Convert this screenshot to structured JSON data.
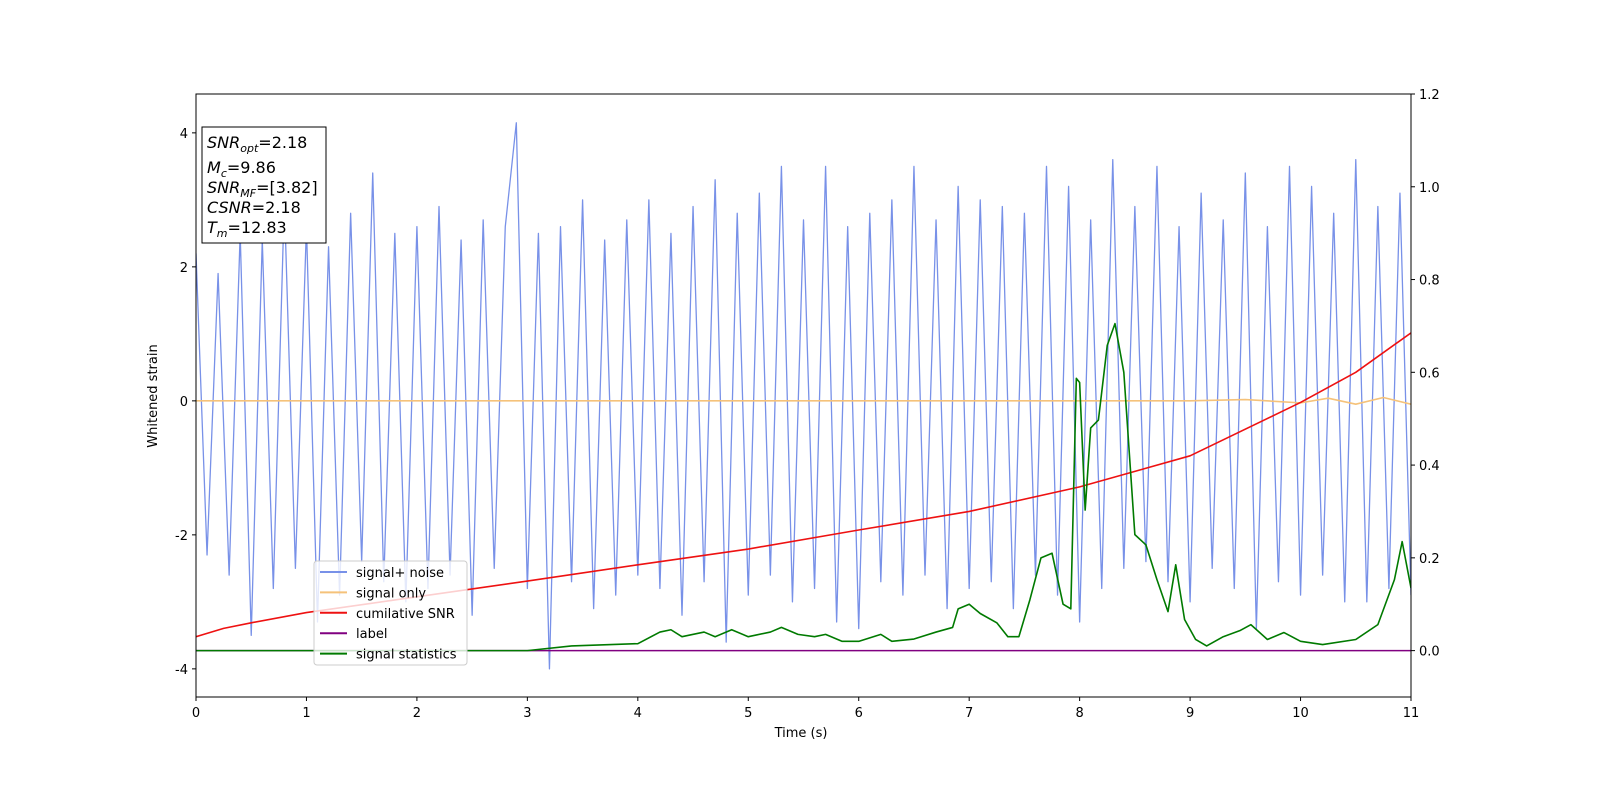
{
  "chart_data": {
    "type": "line",
    "xlabel": "Time (s)",
    "ylabel": "Whitened strain",
    "xlim": [
      0,
      11
    ],
    "xticks": [
      0,
      1,
      2,
      3,
      4,
      5,
      6,
      7,
      8,
      9,
      10,
      11
    ],
    "ylim": [
      -4.42,
      4.58
    ],
    "yticks": [
      -4,
      -2,
      0,
      2,
      4
    ],
    "y2lim": [
      -0.1,
      1.2
    ],
    "y2ticks": [
      {
        "value": 0,
        "label": "0.0"
      },
      0.2,
      0.4,
      0.6,
      0.8,
      {
        "value": 1,
        "label": "1.0"
      },
      1.2
    ],
    "legend_loc": "lower left",
    "annotation": [
      {
        "symbol": "SNR",
        "subscript": "opt",
        "text": "=2.18"
      },
      {
        "symbol": "M",
        "subscript": "c",
        "text": "=9.86"
      },
      {
        "symbol": "SNR",
        "subscript": "MF",
        "text": "=[3.82]"
      },
      {
        "symbol": "CSNR",
        "text": "=2.18"
      },
      {
        "symbol": "T",
        "subscript": "m",
        "text": "=12.83"
      }
    ],
    "series": [
      {
        "name": "signal+ noise",
        "color": "#7891e8",
        "x": [
          0,
          0.1,
          0.2,
          0.3,
          0.4,
          0.5,
          0.6,
          0.7,
          0.8,
          0.9,
          1,
          1.1,
          1.2,
          1.3,
          1.4,
          1.5,
          1.6,
          1.7,
          1.8,
          1.9,
          2,
          2.1,
          2.2,
          2.3,
          2.4,
          2.5,
          2.6,
          2.7,
          2.8,
          2.9,
          3,
          3.1,
          3.2,
          3.3,
          3.4,
          3.5,
          3.6,
          3.7,
          3.8,
          3.9,
          4,
          4.1,
          4.2,
          4.3,
          4.4,
          4.5,
          4.6,
          4.7,
          4.8,
          4.9,
          5,
          5.1,
          5.2,
          5.3,
          5.4,
          5.5,
          5.6,
          5.7,
          5.8,
          5.9,
          6,
          6.1,
          6.2,
          6.3,
          6.4,
          6.5,
          6.6,
          6.7,
          6.8,
          6.9,
          7,
          7.1,
          7.2,
          7.3,
          7.4,
          7.5,
          7.6,
          7.7,
          7.8,
          7.9,
          8,
          8.1,
          8.2,
          8.3,
          8.4,
          8.5,
          8.6,
          8.7,
          8.8,
          8.9,
          9,
          9.1,
          9.2,
          9.3,
          9.4,
          9.5,
          9.6,
          9.7,
          9.8,
          9.9,
          10,
          10.1,
          10.2,
          10.3,
          10.4,
          10.5,
          10.6,
          10.7,
          10.8,
          10.9,
          11
        ],
        "values": [
          2.2,
          -2.3,
          1.9,
          -2.6,
          2.5,
          -3.5,
          2.4,
          -2.8,
          3.0,
          -2.5,
          2.6,
          -3.3,
          2.3,
          -2.9,
          2.8,
          -2.4,
          3.4,
          -2.7,
          2.5,
          -3.0,
          2.6,
          -2.8,
          2.9,
          -2.6,
          2.4,
          -3.2,
          2.7,
          -2.5,
          2.6,
          4.15,
          -2.8,
          2.5,
          -4.0,
          2.6,
          -2.7,
          3.0,
          -3.1,
          2.4,
          -2.9,
          2.7,
          -2.6,
          3.0,
          -2.8,
          2.5,
          -3.2,
          2.9,
          -2.7,
          3.3,
          -3.6,
          2.8,
          -2.9,
          3.1,
          -2.6,
          3.5,
          -3.0,
          2.7,
          -2.8,
          3.5,
          -3.3,
          2.6,
          -3.4,
          2.8,
          -2.7,
          3.0,
          -2.9,
          3.5,
          -2.6,
          2.7,
          -3.1,
          3.2,
          -2.8,
          3.0,
          -2.7,
          2.9,
          -3.1,
          2.8,
          -2.6,
          3.5,
          -2.9,
          3.2,
          -3.3,
          2.7,
          -2.8,
          3.6,
          -2.5,
          2.9,
          -2.4,
          3.5,
          -2.7,
          2.6,
          -3.0,
          3.1,
          -2.5,
          2.7,
          -2.8,
          3.4,
          -3.4,
          2.6,
          -2.7,
          3.5,
          -2.9,
          3.2,
          -2.6,
          2.8,
          -3.0,
          3.6,
          -3.0,
          2.9,
          -2.8,
          3.1,
          -2.9
        ]
      },
      {
        "name": "signal only",
        "color": "#f5c27a",
        "x": [
          0,
          9,
          9.5,
          10,
          10.25,
          10.5,
          10.75,
          11
        ],
        "values": [
          0,
          0,
          0.02,
          -0.03,
          0.04,
          -0.05,
          0.05,
          -0.05
        ]
      },
      {
        "name": "cumilative SNR",
        "color": "#ee1111",
        "axis": "y2",
        "x": [
          0,
          0.25,
          0.5,
          1,
          2,
          3,
          4,
          5,
          6,
          7,
          8,
          9,
          10,
          10.5,
          11
        ],
        "values": [
          0.03,
          0.048,
          0.06,
          0.082,
          0.116,
          0.15,
          0.185,
          0.219,
          0.26,
          0.3,
          0.353,
          0.42,
          0.535,
          0.6,
          0.685
        ]
      },
      {
        "name": "label",
        "color": "#800080",
        "axis": "y2",
        "x": [
          0,
          11
        ],
        "values": [
          0,
          0
        ]
      },
      {
        "name": "signal statistics",
        "color": "#007a00",
        "axis": "y2",
        "x": [
          0,
          1,
          2,
          3,
          3.4,
          4,
          4.2,
          4.3,
          4.4,
          4.6,
          4.7,
          4.85,
          5,
          5.2,
          5.3,
          5.45,
          5.6,
          5.7,
          5.85,
          6,
          6.2,
          6.3,
          6.5,
          6.7,
          6.85,
          6.9,
          7,
          7.1,
          7.25,
          7.35,
          7.45,
          7.55,
          7.65,
          7.75,
          7.85,
          7.92,
          7.97,
          8,
          8.05,
          8.1,
          8.17,
          8.25,
          8.32,
          8.4,
          8.5,
          8.6,
          8.7,
          8.8,
          8.87,
          8.95,
          9.05,
          9.15,
          9.3,
          9.45,
          9.55,
          9.7,
          9.85,
          10,
          10.2,
          10.5,
          10.7,
          10.85,
          10.92,
          11
        ],
        "values": [
          0,
          0,
          0,
          0,
          0.01,
          0.015,
          0.04,
          0.045,
          0.03,
          0.04,
          0.03,
          0.045,
          0.03,
          0.04,
          0.05,
          0.035,
          0.03,
          0.035,
          0.02,
          0.02,
          0.035,
          0.02,
          0.025,
          0.04,
          0.05,
          0.09,
          0.1,
          0.08,
          0.06,
          0.03,
          0.03,
          0.11,
          0.2,
          0.21,
          0.1,
          0.09,
          0.587,
          0.578,
          0.303,
          0.48,
          0.497,
          0.658,
          0.705,
          0.6,
          0.25,
          0.228,
          0.153,
          0.084,
          0.185,
          0.067,
          0.024,
          0.01,
          0.03,
          0.043,
          0.056,
          0.024,
          0.039,
          0.02,
          0.013,
          0.024,
          0.056,
          0.153,
          0.235,
          0.135
        ]
      }
    ]
  }
}
